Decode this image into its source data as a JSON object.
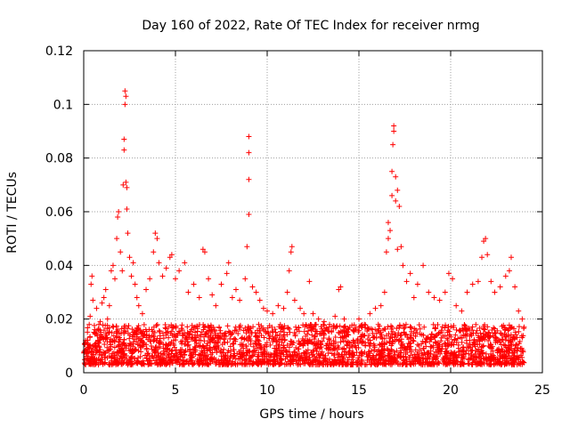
{
  "chart_data": {
    "type": "scatter",
    "title": "Day 160 of 2022, Rate Of TEC Index for receiver nrmg",
    "xlabel": "GPS time / hours",
    "ylabel": "ROTI / TECUs",
    "xlim": [
      0,
      25
    ],
    "ylim": [
      0,
      0.12
    ],
    "xticks": [
      "0",
      "5",
      "10",
      "15",
      "20",
      "25"
    ],
    "yticks": [
      "0",
      "0.02",
      "0.04",
      "0.06",
      "0.08",
      "0.1",
      "0.12"
    ],
    "grid": true,
    "marker": "plus",
    "series": [
      {
        "color": "#ff0000",
        "points": [
          [
            0.1,
            0.012
          ],
          [
            0.2,
            0.008
          ],
          [
            0.3,
            0.018
          ],
          [
            0.35,
            0.021
          ],
          [
            0.4,
            0.033
          ],
          [
            0.45,
            0.036
          ],
          [
            0.5,
            0.027
          ],
          [
            0.6,
            0.015
          ],
          [
            0.7,
            0.024
          ],
          [
            0.8,
            0.011
          ],
          [
            0.9,
            0.019
          ],
          [
            1.0,
            0.026
          ],
          [
            1.1,
            0.028
          ],
          [
            1.2,
            0.031
          ],
          [
            1.3,
            0.02
          ],
          [
            1.4,
            0.025
          ],
          [
            1.5,
            0.038
          ],
          [
            1.6,
            0.04
          ],
          [
            1.7,
            0.035
          ],
          [
            1.8,
            0.05
          ],
          [
            1.85,
            0.058
          ],
          [
            1.9,
            0.06
          ],
          [
            2.0,
            0.045
          ],
          [
            2.1,
            0.038
          ],
          [
            2.15,
            0.07
          ],
          [
            2.2,
            0.083
          ],
          [
            2.2,
            0.087
          ],
          [
            2.25,
            0.1
          ],
          [
            2.25,
            0.105
          ],
          [
            2.3,
            0.103
          ],
          [
            2.3,
            0.071
          ],
          [
            2.35,
            0.069
          ],
          [
            2.35,
            0.061
          ],
          [
            2.4,
            0.052
          ],
          [
            2.5,
            0.043
          ],
          [
            2.6,
            0.036
          ],
          [
            2.7,
            0.041
          ],
          [
            2.8,
            0.033
          ],
          [
            2.9,
            0.028
          ],
          [
            3.0,
            0.025
          ],
          [
            3.2,
            0.022
          ],
          [
            3.4,
            0.031
          ],
          [
            3.6,
            0.035
          ],
          [
            3.8,
            0.045
          ],
          [
            3.9,
            0.052
          ],
          [
            4.0,
            0.05
          ],
          [
            4.1,
            0.041
          ],
          [
            4.3,
            0.036
          ],
          [
            4.5,
            0.039
          ],
          [
            4.7,
            0.043
          ],
          [
            4.8,
            0.044
          ],
          [
            5.0,
            0.035
          ],
          [
            5.2,
            0.038
          ],
          [
            5.5,
            0.041
          ],
          [
            5.7,
            0.03
          ],
          [
            6.0,
            0.033
          ],
          [
            6.3,
            0.028
          ],
          [
            6.5,
            0.046
          ],
          [
            6.6,
            0.045
          ],
          [
            6.8,
            0.035
          ],
          [
            7.0,
            0.029
          ],
          [
            7.2,
            0.025
          ],
          [
            7.5,
            0.033
          ],
          [
            7.8,
            0.037
          ],
          [
            7.9,
            0.041
          ],
          [
            8.1,
            0.028
          ],
          [
            8.3,
            0.031
          ],
          [
            8.5,
            0.027
          ],
          [
            8.8,
            0.035
          ],
          [
            8.9,
            0.047
          ],
          [
            9.0,
            0.059
          ],
          [
            9.0,
            0.072
          ],
          [
            9.0,
            0.082
          ],
          [
            9.0,
            0.088
          ],
          [
            9.2,
            0.032
          ],
          [
            9.4,
            0.03
          ],
          [
            9.6,
            0.027
          ],
          [
            9.8,
            0.024
          ],
          [
            10.0,
            0.023
          ],
          [
            10.3,
            0.022
          ],
          [
            10.6,
            0.025
          ],
          [
            10.9,
            0.024
          ],
          [
            11.1,
            0.03
          ],
          [
            11.2,
            0.038
          ],
          [
            11.3,
            0.045
          ],
          [
            11.35,
            0.047
          ],
          [
            11.5,
            0.027
          ],
          [
            11.8,
            0.024
          ],
          [
            12.0,
            0.022
          ],
          [
            12.3,
            0.034
          ],
          [
            12.5,
            0.022
          ],
          [
            12.8,
            0.02
          ],
          [
            13.1,
            0.019
          ],
          [
            13.4,
            0.018
          ],
          [
            13.7,
            0.021
          ],
          [
            13.9,
            0.031
          ],
          [
            14.0,
            0.032
          ],
          [
            14.2,
            0.02
          ],
          [
            14.5,
            0.017
          ],
          [
            14.8,
            0.016
          ],
          [
            15.0,
            0.02
          ],
          [
            15.3,
            0.018
          ],
          [
            15.6,
            0.022
          ],
          [
            15.9,
            0.024
          ],
          [
            16.2,
            0.025
          ],
          [
            16.4,
            0.03
          ],
          [
            16.5,
            0.045
          ],
          [
            16.6,
            0.056
          ],
          [
            16.6,
            0.05
          ],
          [
            16.7,
            0.053
          ],
          [
            16.8,
            0.066
          ],
          [
            16.8,
            0.075
          ],
          [
            16.85,
            0.085
          ],
          [
            16.9,
            0.09
          ],
          [
            16.9,
            0.092
          ],
          [
            17.0,
            0.073
          ],
          [
            17.0,
            0.064
          ],
          [
            17.1,
            0.068
          ],
          [
            17.1,
            0.046
          ],
          [
            17.2,
            0.062
          ],
          [
            17.3,
            0.047
          ],
          [
            17.4,
            0.04
          ],
          [
            17.6,
            0.034
          ],
          [
            17.8,
            0.037
          ],
          [
            18.0,
            0.028
          ],
          [
            18.2,
            0.033
          ],
          [
            18.5,
            0.04
          ],
          [
            18.8,
            0.03
          ],
          [
            19.1,
            0.028
          ],
          [
            19.4,
            0.027
          ],
          [
            19.7,
            0.03
          ],
          [
            19.9,
            0.037
          ],
          [
            20.1,
            0.035
          ],
          [
            20.3,
            0.025
          ],
          [
            20.6,
            0.023
          ],
          [
            20.9,
            0.03
          ],
          [
            21.2,
            0.033
          ],
          [
            21.5,
            0.034
          ],
          [
            21.7,
            0.043
          ],
          [
            21.8,
            0.049
          ],
          [
            21.9,
            0.05
          ],
          [
            22.0,
            0.044
          ],
          [
            22.2,
            0.034
          ],
          [
            22.4,
            0.03
          ],
          [
            22.7,
            0.032
          ],
          [
            23.0,
            0.036
          ],
          [
            23.2,
            0.038
          ],
          [
            23.3,
            0.043
          ],
          [
            23.5,
            0.032
          ],
          [
            23.7,
            0.023
          ],
          [
            23.9,
            0.02
          ],
          [
            24.0,
            0.017
          ]
        ]
      }
    ],
    "baseline_band": {
      "x_range": [
        0,
        24
      ],
      "y_low": 0.003,
      "y_high": 0.018
    }
  }
}
